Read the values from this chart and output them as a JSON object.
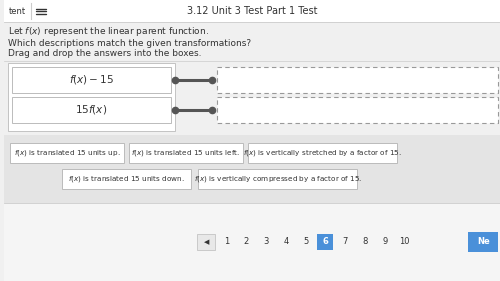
{
  "title": "3.12 Unit 3 Test Part 1 Test",
  "header_left": "tent",
  "question1": "Let $f(x)$ represent the linear parent function.",
  "question2": "Which descriptions match the given transformations?",
  "instruction": "Drag and drop the answers into the boxes.",
  "box1_label": "$f(x)-15$",
  "box2_label": "$15f(x)$",
  "answer_boxes": [
    "$f(x)$ is translated 15 units up.",
    "$f(x)$ is translated 15 units left.",
    "$f(x)$ is vertically stretched by a factor of 15.",
    "$f(x)$ is translated 15 units down.",
    "$f(x)$ is vertically compressed by a factor of 15."
  ],
  "page_numbers": [
    "1",
    "2",
    "3",
    "4",
    "5",
    "6",
    "7",
    "8",
    "9",
    "10"
  ],
  "current_page": "6",
  "bg_color": "#f0f0f0",
  "white": "#ffffff",
  "border_color": "#bbbbbb",
  "dashed_color": "#999999",
  "text_color": "#333333",
  "header_bg": "#ffffff",
  "connector_color": "#555555",
  "nav_highlight": "#4a90d9",
  "ans_bg": "#e4e4e4",
  "nav_bg": "#f5f5f5"
}
